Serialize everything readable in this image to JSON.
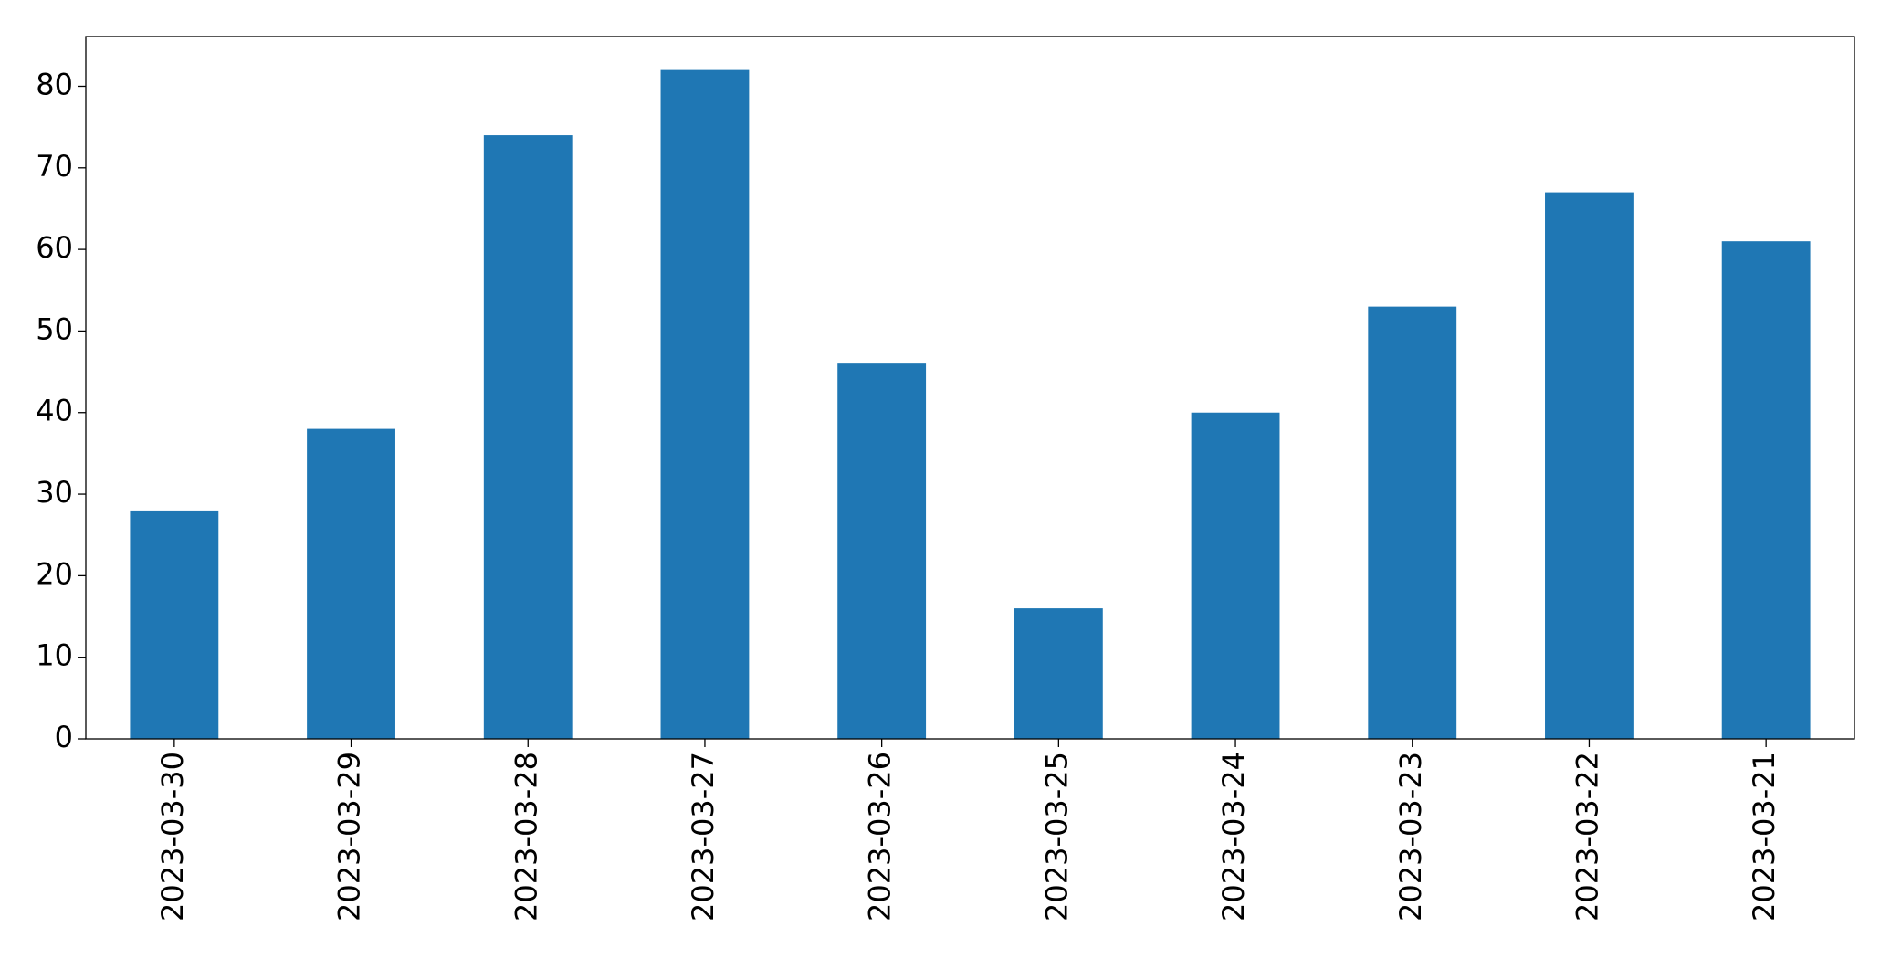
{
  "chart_data": {
    "type": "bar",
    "categories": [
      "2023-03-30",
      "2023-03-29",
      "2023-03-28",
      "2023-03-27",
      "2023-03-26",
      "2023-03-25",
      "2023-03-24",
      "2023-03-23",
      "2023-03-22",
      "2023-03-21"
    ],
    "values": [
      28,
      38,
      74,
      82,
      46,
      16,
      40,
      53,
      67,
      61
    ],
    "color": "#1f77b4",
    "ylim": [
      0,
      86.1
    ],
    "yticks": [
      0,
      10,
      20,
      30,
      40,
      50,
      60,
      70,
      80
    ],
    "grid": false
  }
}
